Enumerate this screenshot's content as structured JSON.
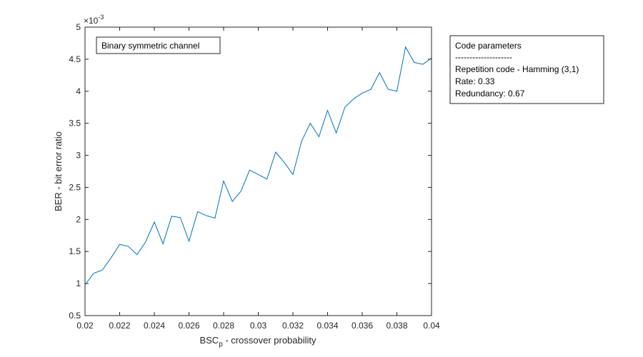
{
  "chart_data": {
    "type": "line",
    "xlabel_main": "BSC",
    "xlabel_sub": "p",
    "xlabel_rest": " -  crossover probability",
    "ylabel": "BER - bit error ratio",
    "exponent_base": "×10",
    "exponent_power": "-3",
    "xlim": [
      0.02,
      0.04
    ],
    "ylim": [
      0.5,
      5
    ],
    "xticks": [
      "0.02",
      "0.022",
      "0.024",
      "0.026",
      "0.028",
      "0.03",
      "0.032",
      "0.034",
      "0.036",
      "0.038",
      "0.04"
    ],
    "yticks": [
      "0.5",
      "1",
      "1.5",
      "2",
      "2.5",
      "3",
      "3.5",
      "4",
      "4.5",
      "5"
    ],
    "grid": false,
    "series": [
      {
        "color": "#0072BD",
        "x": [
          0.02,
          0.0205,
          0.021,
          0.0215,
          0.022,
          0.0225,
          0.023,
          0.0235,
          0.024,
          0.0245,
          0.025,
          0.0255,
          0.026,
          0.0265,
          0.027,
          0.0275,
          0.028,
          0.0285,
          0.029,
          0.0295,
          0.03,
          0.0305,
          0.031,
          0.0315,
          0.032,
          0.0325,
          0.033,
          0.0335,
          0.034,
          0.0345,
          0.035,
          0.0355,
          0.036,
          0.0365,
          0.037,
          0.0375,
          0.038,
          0.0385,
          0.039,
          0.0395,
          0.04
        ],
        "y": [
          0.98,
          1.16,
          1.21,
          1.4,
          1.61,
          1.58,
          1.45,
          1.65,
          1.96,
          1.62,
          2.05,
          2.03,
          1.66,
          2.12,
          2.06,
          2.02,
          2.6,
          2.28,
          2.44,
          2.77,
          2.7,
          2.63,
          3.05,
          2.89,
          2.7,
          3.22,
          3.5,
          3.29,
          3.7,
          3.35,
          3.75,
          3.88,
          3.97,
          4.03,
          4.29,
          4.03,
          4.0,
          4.69,
          4.45,
          4.42,
          4.52
        ]
      }
    ],
    "annotation": "Binary symmetric channel"
  },
  "info_box": {
    "title": "Code parameters",
    "separator": "--------------------",
    "line1": "Repetition code - Hamming (3,1)",
    "line2": "Rate: 0.33",
    "line3": "Redundancy: 0.67"
  }
}
